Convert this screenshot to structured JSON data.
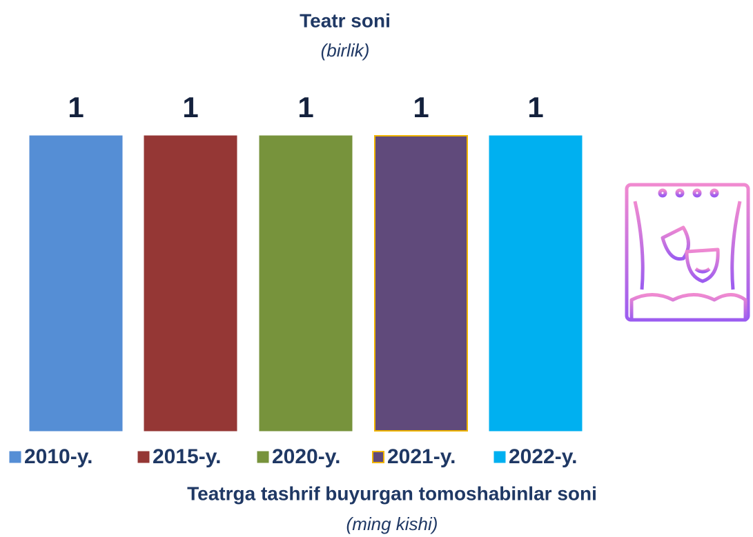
{
  "chart_data": {
    "type": "bar",
    "title": "Teatr soni",
    "subtitle": "(birlik)",
    "series": [
      {
        "name": "2010-y.",
        "color": "#558ed5",
        "values": [
          1
        ]
      },
      {
        "name": "2015-y.",
        "color": "#953735",
        "values": [
          1
        ]
      },
      {
        "name": "2020-y.",
        "color": "#77933c",
        "values": [
          1
        ]
      },
      {
        "name": "2021-y.",
        "color": "#604a7b",
        "edgecolor": "#f0b400",
        "values": [
          1
        ]
      },
      {
        "name": "2022-y.",
        "color": "#00b0f0",
        "values": [
          1
        ]
      }
    ],
    "ylim": [
      0,
      1
    ],
    "legend": "bottom"
  },
  "footer": {
    "title": "Teatrga tashrif buyurgan tomoshabinlar soni",
    "subtitle": "(ming kishi)"
  }
}
